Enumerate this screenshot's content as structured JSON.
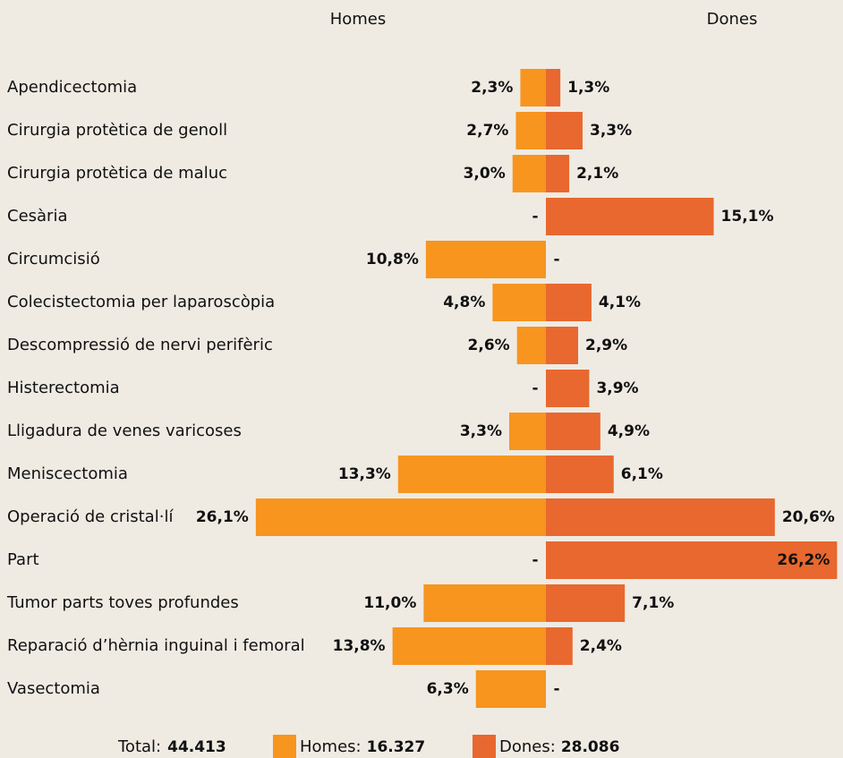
{
  "chart_data": {
    "type": "butterfly",
    "categories": [
      "Apendicectomia",
      "Cirurgia protètica de genoll",
      "Cirurgia protètica de maluc",
      "Cesària",
      "Circumcisió",
      "Colecistectomia per laparoscòpia",
      "Descompressió de nervi perifèric",
      "Histerectomia",
      "Lligadura de venes varicoses",
      "Meniscectomia",
      "Operació de cristal·lí",
      "Part",
      "Tumor parts toves profundes",
      "Reparació d’hèrnia inguinal i femoral",
      "Vasectomia"
    ],
    "series": [
      {
        "name": "Homes",
        "color": "#f7951f",
        "legend_label": "Homes:",
        "total_label": "16.327",
        "values": [
          2.3,
          2.7,
          3.0,
          null,
          10.8,
          4.8,
          2.6,
          null,
          3.3,
          13.3,
          26.1,
          null,
          11.0,
          13.8,
          6.3
        ],
        "value_labels": [
          "2,3%",
          "2,7%",
          "3,0%",
          "-",
          "10,8%",
          "4,8%",
          "2,6%",
          "-",
          "3,3%",
          "13,3%",
          "26,1%",
          "-",
          "11,0%",
          "13,8%",
          "6,3%"
        ]
      },
      {
        "name": "Dones",
        "color": "#e8682f",
        "legend_label": "Dones:",
        "total_label": "28.086",
        "values": [
          1.3,
          3.3,
          2.1,
          15.1,
          null,
          4.1,
          2.9,
          3.9,
          4.9,
          6.1,
          20.6,
          26.2,
          7.1,
          2.4,
          null
        ],
        "value_labels": [
          "1,3%",
          "3,3%",
          "2,1%",
          "15,1%",
          "-",
          "4,1%",
          "2,9%",
          "3,9%",
          "4,9%",
          "6,1%",
          "20,6%",
          "26,2%",
          "7,1%",
          "2,4%",
          "-"
        ]
      }
    ],
    "total_text": "Total:",
    "total_value": "44.413"
  }
}
